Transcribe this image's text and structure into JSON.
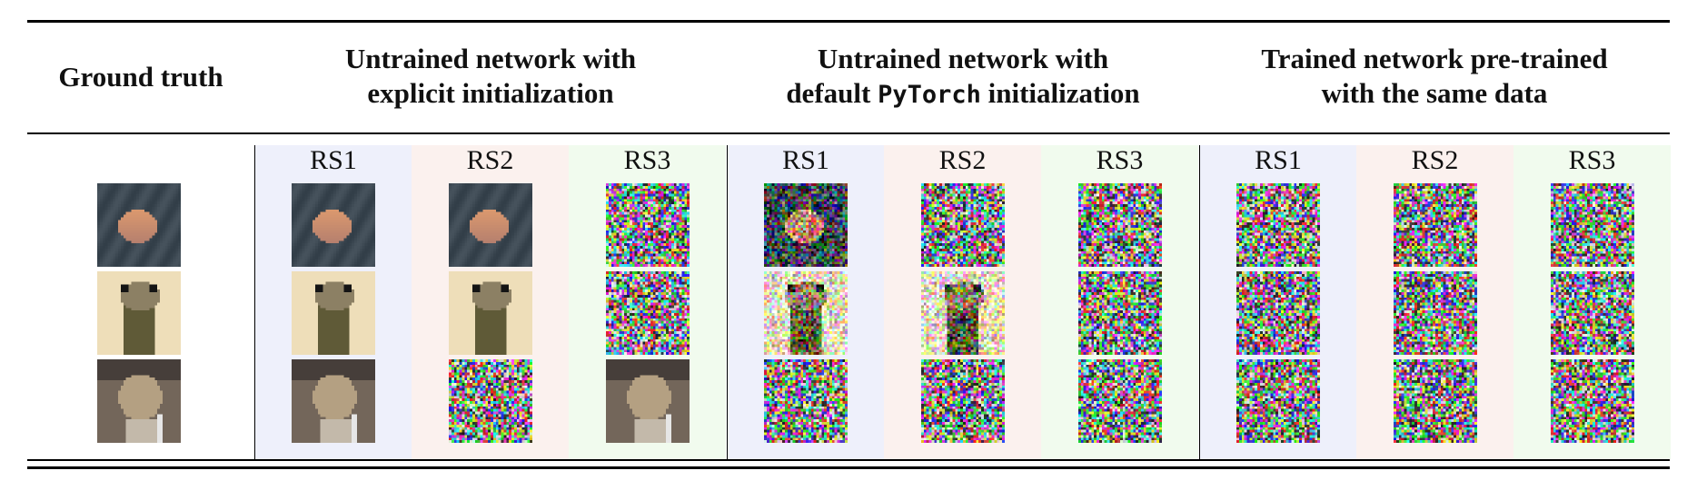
{
  "header": {
    "ground_truth": "Ground truth",
    "groups": [
      {
        "line1": "Untrained network with",
        "line2_pre": "",
        "line2_mono": "",
        "line2_post": "explicit initialization"
      },
      {
        "line1": "Untrained network with",
        "line2_pre": "default ",
        "line2_mono": "PyTorch",
        "line2_post": " initialization"
      },
      {
        "line1": "Trained network pre-trained",
        "line2_pre": "",
        "line2_mono": "",
        "line2_post": "with the same data"
      }
    ]
  },
  "seed_labels": [
    "RS1",
    "RS2",
    "RS3"
  ],
  "images": {
    "ground_truth": [
      "frog-image",
      "ostrich-image",
      "cat-image"
    ],
    "groups": [
      [
        [
          "recon",
          "recon",
          "noise"
        ],
        [
          "recon",
          "recon",
          "noise"
        ],
        [
          "recon",
          "noise",
          "recon"
        ]
      ],
      [
        [
          "noisy-recon",
          "noise",
          "noise"
        ],
        [
          "noisy-recon",
          "noisy-recon",
          "noise"
        ],
        [
          "noise",
          "noise",
          "noise"
        ]
      ],
      [
        [
          "noise",
          "noise",
          "noise"
        ],
        [
          "noise",
          "noise",
          "noise"
        ],
        [
          "noise",
          "noise",
          "noise"
        ]
      ]
    ]
  },
  "colors": {
    "rs1_band": "#eef0fb",
    "rs2_band": "#fbf1ee",
    "rs3_band": "#f1fbee"
  }
}
